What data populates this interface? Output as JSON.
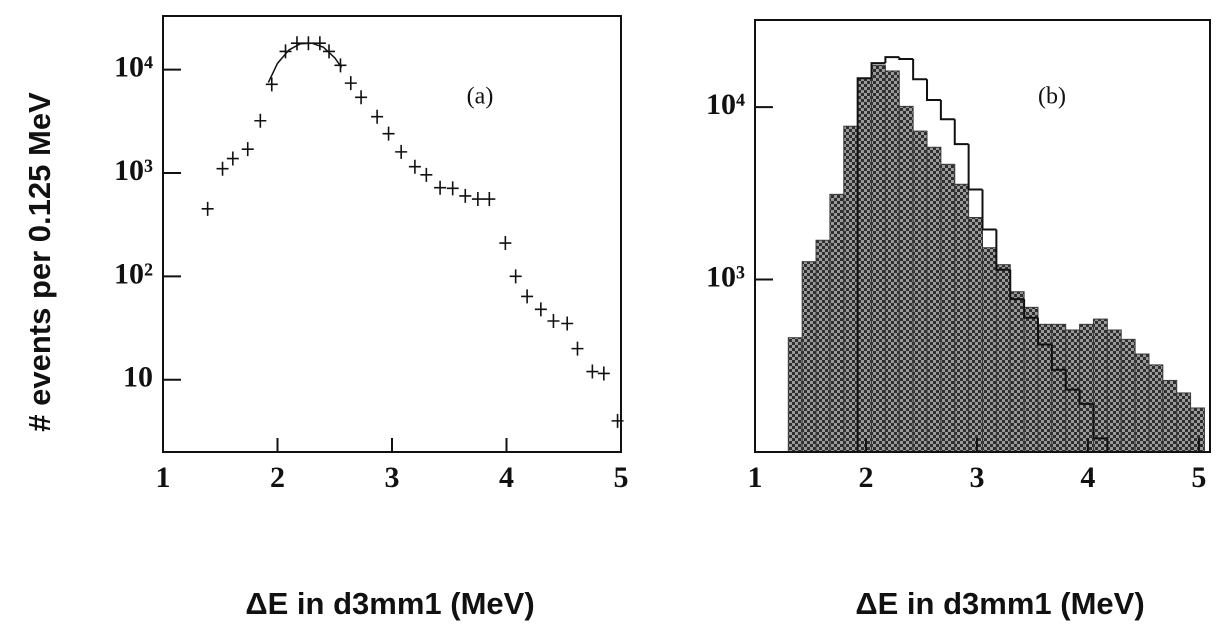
{
  "chart_data": [
    {
      "type": "scatter",
      "annotation": "(a)",
      "ylabel": "# events per 0.125 MeV",
      "xlabel": "ΔE in d3mm1 (MeV)",
      "log_y": true,
      "color": "#111111",
      "xlim": [
        1,
        5
      ],
      "ylim": [
        2,
        33000
      ],
      "xticks": [
        1,
        2,
        3,
        4,
        5
      ],
      "yticks": [
        10,
        {
          "value": 100,
          "label": "10²"
        },
        {
          "value": 1000,
          "label": "10³"
        },
        {
          "value": 10000,
          "label": "10⁴"
        }
      ],
      "points": {
        "x": [
          1.39,
          1.52,
          1.61,
          1.74,
          1.85,
          1.95,
          2.07,
          2.17,
          2.27,
          2.37,
          2.45,
          2.55,
          2.64,
          2.73,
          2.87,
          2.97,
          3.08,
          3.2,
          3.3,
          3.42,
          3.53,
          3.64,
          3.75,
          3.85,
          3.99,
          4.08,
          4.18,
          4.3,
          4.41,
          4.53,
          4.62,
          4.75,
          4.85,
          4.97
        ],
        "y": [
          450,
          1100,
          1380,
          1700,
          3200,
          7200,
          15000,
          18000,
          18000,
          18000,
          15000,
          11000,
          7400,
          5400,
          3500,
          2400,
          1600,
          1150,
          960,
          720,
          710,
          600,
          560,
          560,
          210,
          100,
          64,
          48,
          37,
          35,
          20,
          12,
          11.5,
          4
        ]
      },
      "fit": {
        "x": [
          1.92,
          2.0,
          2.1,
          2.2,
          2.3,
          2.4,
          2.5,
          2.56
        ],
        "y": [
          7500,
          11500,
          15500,
          17800,
          18000,
          16500,
          13000,
          10500
        ]
      }
    },
    {
      "type": "histogram",
      "annotation": "(b)",
      "xlabel": "ΔE in d3mm1 (MeV)",
      "log_y": true,
      "xlim": [
        1,
        5.1
      ],
      "ylim": [
        100,
        32000
      ],
      "xticks": [
        1,
        2,
        3,
        4,
        5
      ],
      "yticks": [
        {
          "value": 1000,
          "label": "10³"
        },
        {
          "value": 10000,
          "label": "10⁴"
        }
      ],
      "series": [
        {
          "filled": true,
          "color": "#3a3a3a",
          "bins": [
            1.3,
            1.425,
            1.55,
            1.675,
            1.8,
            1.925,
            2.05,
            2.175,
            2.3,
            2.425,
            2.55,
            2.675,
            2.8,
            2.925,
            3.05,
            3.175,
            3.3,
            3.425,
            3.55,
            3.675,
            3.8,
            3.925,
            4.05,
            4.175,
            4.3,
            4.425,
            4.55,
            4.675,
            4.8,
            4.925,
            5.05
          ],
          "values": [
            460,
            1270,
            1690,
            3120,
            7750,
            14700,
            17500,
            16200,
            10100,
            7260,
            5850,
            4660,
            3570,
            2290,
            1530,
            1220,
            850,
            690,
            550,
            550,
            510,
            550,
            590,
            510,
            450,
            370,
            320,
            260,
            220,
            180
          ]
        },
        {
          "filled": false,
          "color": "#111111",
          "bins": [
            1.925,
            2.05,
            2.175,
            2.3,
            2.425,
            2.55,
            2.675,
            2.8,
            2.925,
            3.05,
            3.175,
            3.3,
            3.425,
            3.55,
            3.675,
            3.8,
            3.925,
            4.05,
            4.175
          ],
          "values": [
            14700,
            18000,
            19500,
            19000,
            14500,
            11000,
            8500,
            6100,
            3330,
            1950,
            1140,
            770,
            600,
            420,
            300,
            230,
            190,
            120
          ]
        }
      ]
    }
  ]
}
